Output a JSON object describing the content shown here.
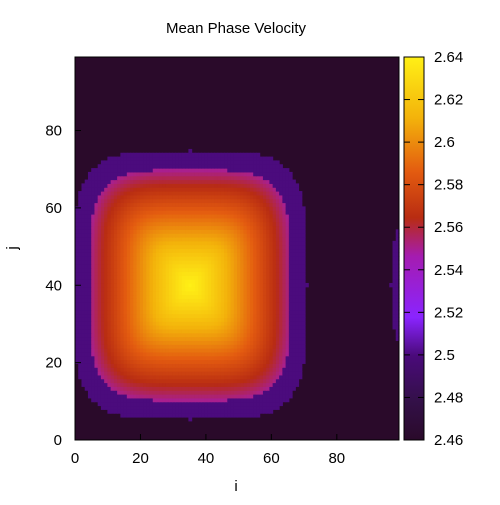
{
  "chart_data": {
    "type": "heatmap",
    "title": "Mean Phase Velocity",
    "xlabel": "i",
    "ylabel": "j",
    "xlim": [
      0,
      99
    ],
    "ylim": [
      0,
      99
    ],
    "x_ticks": [
      0,
      20,
      40,
      60,
      80
    ],
    "y_ticks": [
      0,
      20,
      40,
      60,
      80
    ],
    "colorbar": {
      "min": 2.46,
      "max": 2.64,
      "ticks": [
        2.46,
        2.48,
        2.5,
        2.52,
        2.54,
        2.56,
        2.58,
        2.6,
        2.62,
        2.64
      ],
      "tick_labels": [
        "2.46",
        "2.48",
        "2.5",
        "2.52",
        "2.54",
        "2.56",
        "2.58",
        "2.6",
        "2.62",
        "2.64"
      ],
      "placement": "right",
      "colormap": "gnuplot-like black-purple-red-orange-yellow"
    },
    "regions": [
      {
        "name": "main-blob",
        "shape": "rounded-rectangle",
        "center": [
          35,
          40
        ],
        "half_width": [
          36,
          35
        ],
        "outer_rim_value": 2.5,
        "peak_value": 2.64
      },
      {
        "name": "right-edge-blob",
        "shape": "ellipse-partial",
        "center": [
          100,
          40
        ],
        "half_width": [
          3,
          15
        ],
        "value": 2.5
      }
    ],
    "background_value": 2.46,
    "colors": {
      "background": "#2a0a2a",
      "purple": "#8a24ff",
      "dark_purple": "#4a0a7a",
      "red": "#b82c12",
      "orange": "#e35b10",
      "yellow_orange": "#f3b20b",
      "yellow": "#fff016"
    }
  }
}
